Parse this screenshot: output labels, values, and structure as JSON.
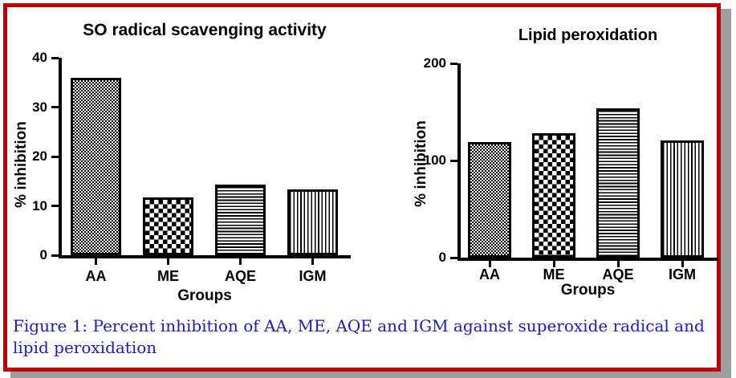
{
  "colors": {
    "ink": "#000000",
    "border_red": "#c00000",
    "shadow_gray": "#9e9e9e",
    "caption_blue": "#1a1acd",
    "paper": "#ffffff"
  },
  "caption": {
    "line1": "Figure 1: Percent inhibition of AA, ME, AQE and IGM against superoxide radical and",
    "line2": "lipid peroxidation"
  },
  "chart_data": [
    {
      "type": "bar",
      "title": "SO radical scavenging activity",
      "xlabel": "Groups",
      "ylabel": "% inhibition",
      "categories": [
        "AA",
        "ME",
        "AQE",
        "IGM"
      ],
      "values": [
        36,
        11.7,
        14.3,
        13.4
      ],
      "ylim": [
        0,
        40
      ],
      "yticks": [
        0,
        10,
        20,
        30,
        40
      ],
      "bar_patterns": [
        "fine-check",
        "checkerboard",
        "horizontal-lines",
        "vertical-lines"
      ],
      "bar_fill": "black-pattern-on-white",
      "grid": false,
      "legend": "none"
    },
    {
      "type": "bar",
      "title": "Lipid peroxidation",
      "xlabel": "Groups",
      "ylabel": "% inhibition",
      "categories": [
        "AA",
        "ME",
        "AQE",
        "IGM"
      ],
      "values": [
        119,
        128,
        154,
        121
      ],
      "ylim": [
        0,
        200
      ],
      "yticks": [
        0,
        100,
        200
      ],
      "bar_patterns": [
        "fine-check",
        "checkerboard",
        "horizontal-lines",
        "vertical-lines"
      ],
      "bar_fill": "black-pattern-on-white",
      "grid": false,
      "legend": "none"
    }
  ]
}
